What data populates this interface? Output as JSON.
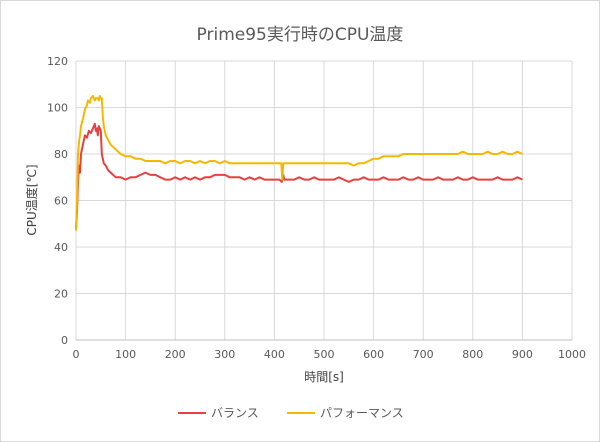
{
  "chart_data": {
    "type": "line",
    "title": "Prime95実行時のCPU温度",
    "xlabel": "時間[s]",
    "ylabel": "CPU温度[℃]",
    "xlim": [
      0,
      1000
    ],
    "ylim": [
      0,
      120
    ],
    "xticks": [
      0,
      100,
      200,
      300,
      400,
      500,
      600,
      700,
      800,
      900,
      1000
    ],
    "yticks": [
      0,
      20,
      40,
      60,
      80,
      100,
      120
    ],
    "grid": "vertical-and-horizontal",
    "legend_position": "bottom",
    "series": [
      {
        "name": "バランス",
        "color": "#e84040",
        "x": [
          0,
          2,
          4,
          6,
          8,
          10,
          14,
          18,
          22,
          26,
          30,
          34,
          38,
          40,
          42,
          44,
          46,
          48,
          50,
          52,
          54,
          56,
          60,
          65,
          70,
          80,
          90,
          100,
          110,
          120,
          130,
          140,
          150,
          160,
          170,
          180,
          190,
          200,
          210,
          220,
          230,
          240,
          250,
          260,
          270,
          280,
          290,
          300,
          310,
          320,
          330,
          340,
          350,
          360,
          370,
          380,
          390,
          400,
          410,
          415,
          418,
          420,
          425,
          430,
          440,
          450,
          460,
          470,
          480,
          490,
          500,
          510,
          520,
          530,
          540,
          550,
          560,
          570,
          580,
          590,
          600,
          610,
          620,
          630,
          640,
          650,
          660,
          670,
          680,
          690,
          700,
          710,
          720,
          730,
          740,
          750,
          760,
          770,
          780,
          790,
          800,
          810,
          820,
          830,
          840,
          850,
          860,
          870,
          880,
          890,
          900
        ],
        "values": [
          48,
          55,
          68,
          75,
          72,
          80,
          84,
          88,
          87,
          90,
          89,
          91,
          93,
          90,
          91,
          88,
          92,
          91,
          90,
          80,
          78,
          76,
          75,
          73,
          72,
          70,
          70,
          69,
          70,
          70,
          71,
          72,
          71,
          71,
          70,
          69,
          69,
          70,
          69,
          70,
          69,
          70,
          69,
          70,
          70,
          71,
          71,
          71,
          70,
          70,
          70,
          69,
          70,
          69,
          70,
          69,
          69,
          69,
          69,
          68,
          71,
          69,
          69,
          69,
          69,
          70,
          69,
          69,
          70,
          69,
          69,
          69,
          69,
          70,
          69,
          68,
          69,
          69,
          70,
          69,
          69,
          69,
          70,
          69,
          69,
          69,
          70,
          69,
          69,
          70,
          69,
          69,
          69,
          70,
          69,
          69,
          69,
          70,
          69,
          69,
          70,
          69,
          69,
          69,
          69,
          70,
          69,
          69,
          69,
          70,
          69
        ]
      },
      {
        "name": "パフォーマンス",
        "color": "#f5b800",
        "x": [
          0,
          2,
          4,
          6,
          8,
          10,
          14,
          18,
          22,
          24,
          28,
          30,
          34,
          38,
          40,
          44,
          46,
          48,
          50,
          52,
          54,
          56,
          58,
          60,
          65,
          70,
          75,
          80,
          90,
          100,
          110,
          120,
          130,
          140,
          150,
          160,
          170,
          180,
          190,
          200,
          210,
          220,
          230,
          240,
          250,
          260,
          270,
          280,
          290,
          300,
          310,
          320,
          330,
          340,
          350,
          360,
          370,
          380,
          390,
          400,
          410,
          414,
          416,
          418,
          420,
          425,
          430,
          440,
          450,
          460,
          470,
          480,
          490,
          500,
          510,
          520,
          530,
          540,
          550,
          560,
          570,
          580,
          590,
          600,
          610,
          620,
          630,
          640,
          650,
          660,
          670,
          680,
          690,
          700,
          710,
          720,
          730,
          740,
          750,
          760,
          770,
          780,
          790,
          800,
          810,
          820,
          830,
          840,
          850,
          860,
          870,
          880,
          890,
          900
        ],
        "values": [
          47,
          60,
          80,
          85,
          88,
          92,
          95,
          99,
          101,
          103,
          102,
          104,
          105,
          103,
          104,
          104,
          103,
          105,
          104,
          104,
          96,
          92,
          90,
          88,
          86,
          84,
          83,
          82,
          80,
          79,
          79,
          78,
          78,
          77,
          77,
          77,
          77,
          76,
          77,
          77,
          76,
          77,
          77,
          76,
          77,
          76,
          77,
          77,
          76,
          77,
          76,
          76,
          76,
          76,
          76,
          76,
          76,
          76,
          76,
          76,
          76,
          76,
          69,
          76,
          76,
          76,
          76,
          76,
          76,
          76,
          76,
          76,
          76,
          76,
          76,
          76,
          76,
          76,
          76,
          75,
          76,
          76,
          77,
          78,
          78,
          79,
          79,
          79,
          79,
          80,
          80,
          80,
          80,
          80,
          80,
          80,
          80,
          80,
          80,
          80,
          80,
          81,
          80,
          80,
          80,
          80,
          81,
          80,
          80,
          81,
          80,
          80,
          81,
          80
        ]
      }
    ]
  }
}
